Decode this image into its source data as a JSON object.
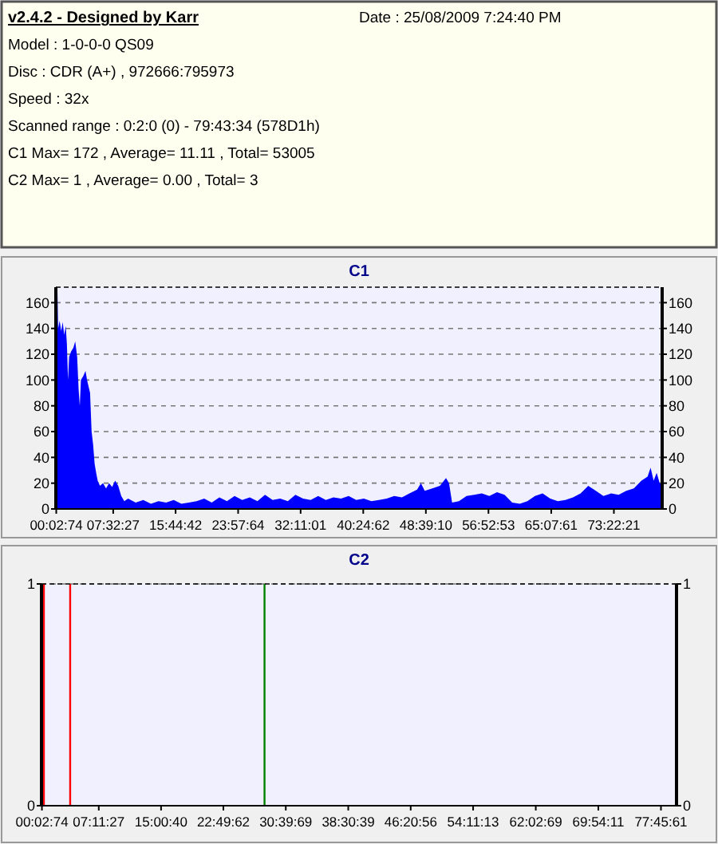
{
  "chart_data": [
    {
      "type": "other",
      "title": "v2.4.2 - Designed by Karr",
      "annotations": [
        "Date : 25/08/2009 7:24:40 PM",
        "Model : 1-0-0-0 QS09",
        "Disc : CDR (A+) , 972666:795973",
        "Speed : 32x",
        "Scanned range : 0:2:0 (0) - 79:43:34 (578D1h)",
        "C1 Max= 172 , Average= 11.11 , Total= 53005",
        "C2 Max= 1 , Average= 0.00 , Total= 3"
      ]
    },
    {
      "type": "area",
      "title": "C1",
      "color": "#0000ff",
      "grid": "y",
      "xlim": [
        0,
        79.72
      ],
      "ylim": [
        0,
        172
      ],
      "y2lim": [
        0,
        172
      ],
      "xticks": [
        {
          "value": 0.0539,
          "label": "00:02:74"
        },
        {
          "value": 7.5408,
          "label": "07:32:27"
        },
        {
          "value": 15.745,
          "label": "15:44:42"
        },
        {
          "value": 23.9678,
          "label": "23:57:64"
        },
        {
          "value": 32.1836,
          "label": "32:11:01"
        },
        {
          "value": 40.4172,
          "label": "40:24:62"
        },
        {
          "value": 48.6528,
          "label": "48:39:10"
        },
        {
          "value": 56.8814,
          "label": "56:52:53"
        },
        {
          "value": 65.1336,
          "label": "65:07:61"
        },
        {
          "value": 73.3725,
          "label": "73:22:21"
        }
      ],
      "yticks": [
        0,
        20,
        40,
        60,
        80,
        100,
        120,
        140,
        160
      ],
      "y2ticks": [
        0,
        20,
        40,
        60,
        80,
        100,
        120,
        140,
        160
      ],
      "x": [
        0,
        0.1,
        0.2,
        0.3,
        0.5,
        0.7,
        0.9,
        1.1,
        1.3,
        1.45,
        1.6,
        1.75,
        2.0,
        2.3,
        2.55,
        2.8,
        3.0,
        3.15,
        3.3,
        3.6,
        3.9,
        4.1,
        4.3,
        4.5,
        4.7,
        4.9,
        5.1,
        5.3,
        5.5,
        5.8,
        6.2,
        6.6,
        7.0,
        7.4,
        7.8,
        8.2,
        8.6,
        9.0,
        9.5,
        10.5,
        11.5,
        12.5,
        13.5,
        14.5,
        15.5,
        16.5,
        17.5,
        18.5,
        19.5,
        20.5,
        21.5,
        22.5,
        23.5,
        24.5,
        25.5,
        26.5,
        27.5,
        28.5,
        29.5,
        30.5,
        31.5,
        32.5,
        33.5,
        34.5,
        35.5,
        36.5,
        37.5,
        38.5,
        39.5,
        40.5,
        41.5,
        42.5,
        43.5,
        44.5,
        45.5,
        46.5,
        47.5,
        48.0,
        48.5,
        49.5,
        50.5,
        51.3,
        51.7,
        52.1,
        53.0,
        54.0,
        55.0,
        56.0,
        57.0,
        58.0,
        59.0,
        60.0,
        61.0,
        62.0,
        63.0,
        64.0,
        65.0,
        66.0,
        67.0,
        68.0,
        69.0,
        70.0,
        71.0,
        72.0,
        73.0,
        74.0,
        75.0,
        76.0,
        77.0,
        77.8,
        78.2,
        78.6,
        79.0,
        79.4,
        79.72
      ],
      "values": [
        140,
        145,
        172,
        140,
        146,
        138,
        145,
        135,
        142,
        128,
        100,
        118,
        122,
        125,
        130,
        118,
        92,
        80,
        100,
        103,
        107,
        100,
        95,
        90,
        60,
        50,
        35,
        28,
        22,
        18,
        20,
        16,
        20,
        17,
        22,
        18,
        10,
        6,
        8,
        5,
        7,
        4,
        6,
        5,
        7,
        4,
        5,
        6,
        8,
        5,
        9,
        6,
        10,
        7,
        9,
        6,
        11,
        7,
        8,
        6,
        11,
        8,
        7,
        10,
        7,
        9,
        8,
        10,
        7,
        8,
        6,
        7,
        8,
        10,
        9,
        12,
        15,
        20,
        14,
        16,
        18,
        24,
        20,
        5,
        6,
        10,
        11,
        12,
        10,
        13,
        11,
        5,
        4,
        6,
        10,
        12,
        8,
        6,
        7,
        9,
        12,
        18,
        14,
        10,
        12,
        11,
        14,
        16,
        22,
        25,
        32,
        22,
        28,
        20,
        20
      ]
    },
    {
      "type": "bar",
      "title": "C2",
      "grid": "y",
      "xlim": [
        0,
        79.72
      ],
      "ylim": [
        0,
        1
      ],
      "y2lim": [
        0,
        1
      ],
      "yticks": [
        0,
        1
      ],
      "y2ticks": [
        0,
        1
      ],
      "xticks": [
        {
          "value": 0.0539,
          "label": "00:02:74"
        },
        {
          "value": 7.1908,
          "label": "07:11:27"
        },
        {
          "value": 15.0111,
          "label": "15:00:40"
        },
        {
          "value": 22.8339,
          "label": "22:49:62"
        },
        {
          "value": 30.6692,
          "label": "30:39:69"
        },
        {
          "value": 38.5108,
          "label": "38:30:39"
        },
        {
          "value": 46.3489,
          "label": "46:20:56"
        },
        {
          "value": 54.1869,
          "label": "54:11:13"
        },
        {
          "value": 62.0525,
          "label": "62:02:69"
        },
        {
          "value": 69.9031,
          "label": "69:54:11"
        },
        {
          "value": 77.7669,
          "label": "77:45:61"
        }
      ],
      "x": [
        0.3,
        3.6,
        28.0
      ],
      "values": [
        1,
        1,
        1
      ],
      "colors": [
        "#ff0000",
        "#ff0000",
        "#008000"
      ]
    }
  ]
}
